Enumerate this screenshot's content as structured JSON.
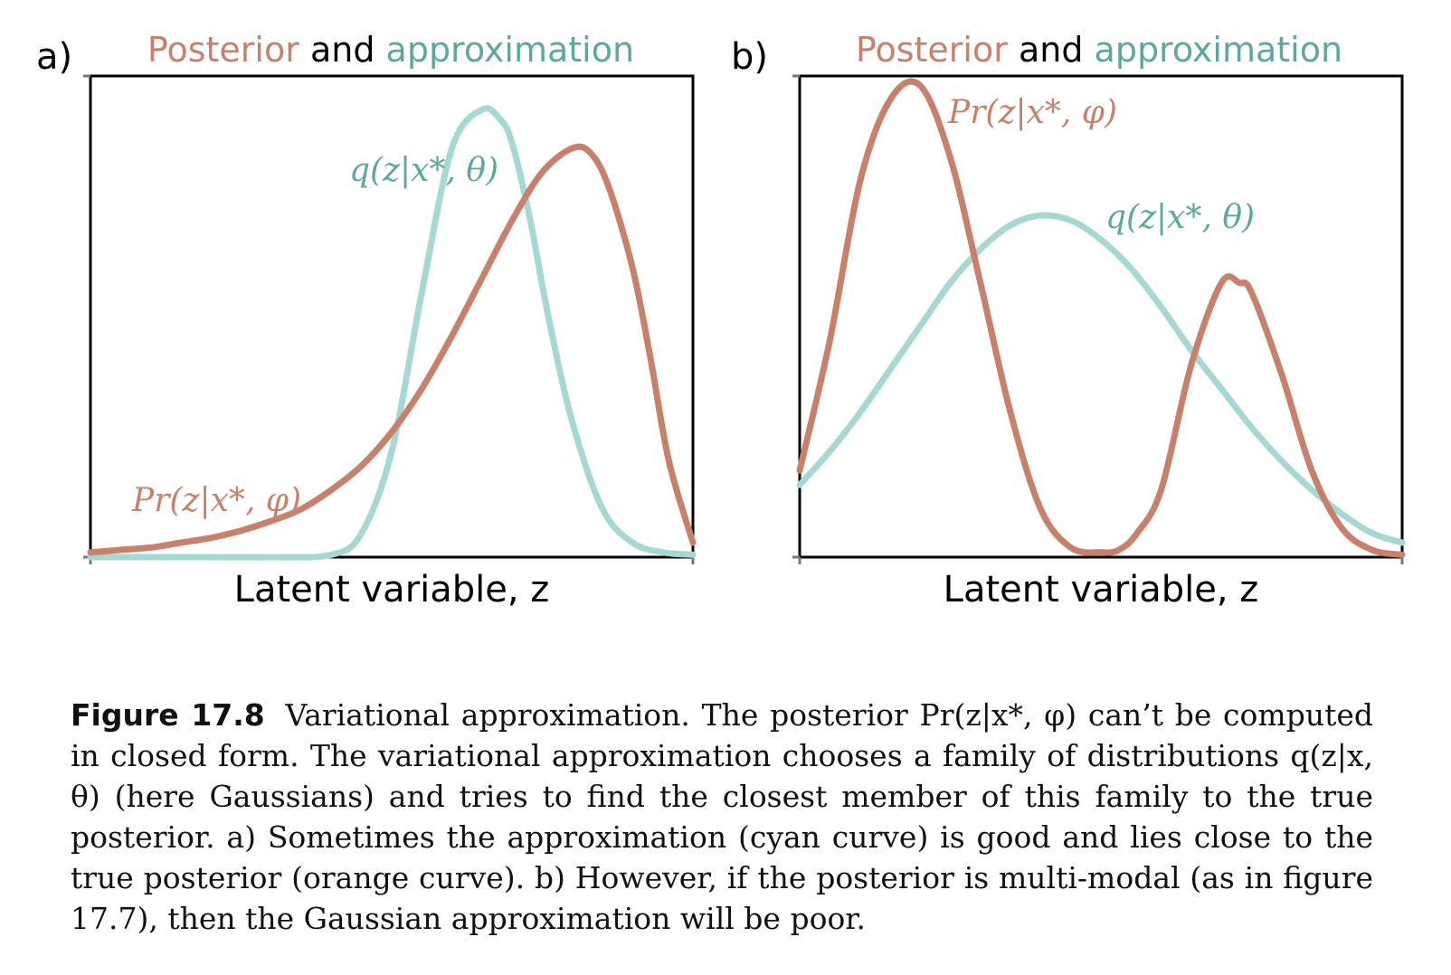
{
  "colors": {
    "posterior": "#c9806a",
    "approximation": "#a6d8d3",
    "posterior_text": "#c9806a",
    "approximation_text": "#5aa8a0"
  },
  "title_parts": {
    "posterior": "Posterior",
    "and": " and ",
    "approximation": "approximation"
  },
  "chart_data": [
    {
      "panel": "a)",
      "type": "line",
      "xlabel": "Latent variable, z",
      "ylabel": "",
      "xlim": [
        0,
        1
      ],
      "ylim": [
        0,
        1
      ],
      "grid": false,
      "series": [
        {
          "name": "Pr(z|x*, φ)",
          "color": "#c9806a",
          "x": [
            0,
            0.05,
            0.1,
            0.15,
            0.2,
            0.25,
            0.3,
            0.35,
            0.4,
            0.45,
            0.5,
            0.55,
            0.6,
            0.65,
            0.7,
            0.75,
            0.8,
            0.83,
            0.86,
            0.9,
            0.93,
            0.96,
            1.0
          ],
          "y": [
            0.01,
            0.015,
            0.02,
            0.03,
            0.04,
            0.055,
            0.075,
            0.1,
            0.14,
            0.19,
            0.26,
            0.35,
            0.46,
            0.58,
            0.7,
            0.8,
            0.85,
            0.84,
            0.77,
            0.6,
            0.41,
            0.2,
            0.03
          ]
        },
        {
          "name": "q(z|x*, θ)",
          "color": "#a6d8d3",
          "x": [
            0,
            0.1,
            0.2,
            0.3,
            0.4,
            0.45,
            0.5,
            0.55,
            0.6,
            0.65,
            0.68,
            0.7,
            0.73,
            0.76,
            0.8,
            0.85,
            0.9,
            0.95,
            1.0
          ],
          "y": [
            0,
            0,
            0,
            0,
            0.005,
            0.05,
            0.22,
            0.55,
            0.85,
            0.93,
            0.91,
            0.86,
            0.7,
            0.5,
            0.28,
            0.1,
            0.03,
            0.01,
            0.005
          ]
        }
      ]
    },
    {
      "panel": "b)",
      "type": "line",
      "xlabel": "Latent variable, z",
      "ylabel": "",
      "xlim": [
        0,
        1
      ],
      "ylim": [
        0,
        1
      ],
      "grid": false,
      "series": [
        {
          "name": "Pr(z|x*, φ)",
          "color": "#c9806a",
          "x": [
            0,
            0.05,
            0.1,
            0.15,
            0.2,
            0.25,
            0.3,
            0.35,
            0.4,
            0.45,
            0.5,
            0.53,
            0.56,
            0.6,
            0.65,
            0.7,
            0.73,
            0.75,
            0.8,
            0.85,
            0.9,
            0.95,
            1.0
          ],
          "y": [
            0.18,
            0.45,
            0.78,
            0.95,
            0.98,
            0.83,
            0.57,
            0.3,
            0.1,
            0.02,
            0.01,
            0.015,
            0.05,
            0.14,
            0.4,
            0.57,
            0.57,
            0.55,
            0.38,
            0.18,
            0.06,
            0.015,
            0.005
          ]
        },
        {
          "name": "q(z|x*, θ)",
          "color": "#a6d8d3",
          "x": [
            0,
            0.05,
            0.1,
            0.15,
            0.2,
            0.25,
            0.3,
            0.35,
            0.4,
            0.45,
            0.5,
            0.55,
            0.6,
            0.65,
            0.7,
            0.75,
            0.8,
            0.85,
            0.9,
            0.95,
            1.0
          ],
          "y": [
            0.15,
            0.22,
            0.3,
            0.39,
            0.48,
            0.57,
            0.64,
            0.69,
            0.71,
            0.7,
            0.66,
            0.6,
            0.52,
            0.43,
            0.35,
            0.27,
            0.2,
            0.14,
            0.09,
            0.05,
            0.03
          ]
        }
      ]
    }
  ],
  "caption": {
    "label": "Figure 17.8",
    "text": "Variational approximation. The posterior Pr(z|x*, φ) can’t be computed in closed form. The variational approximation chooses a family of distributions q(z|x, θ) (here Gaussians) and tries to find the closest member of this family to the true posterior. a) Sometimes the approximation (cyan curve) is good and lies close to the true posterior (orange curve). b) However, if the posterior is multi-modal (as in figure 17.7), then the Gaussian approximation will be poor."
  }
}
